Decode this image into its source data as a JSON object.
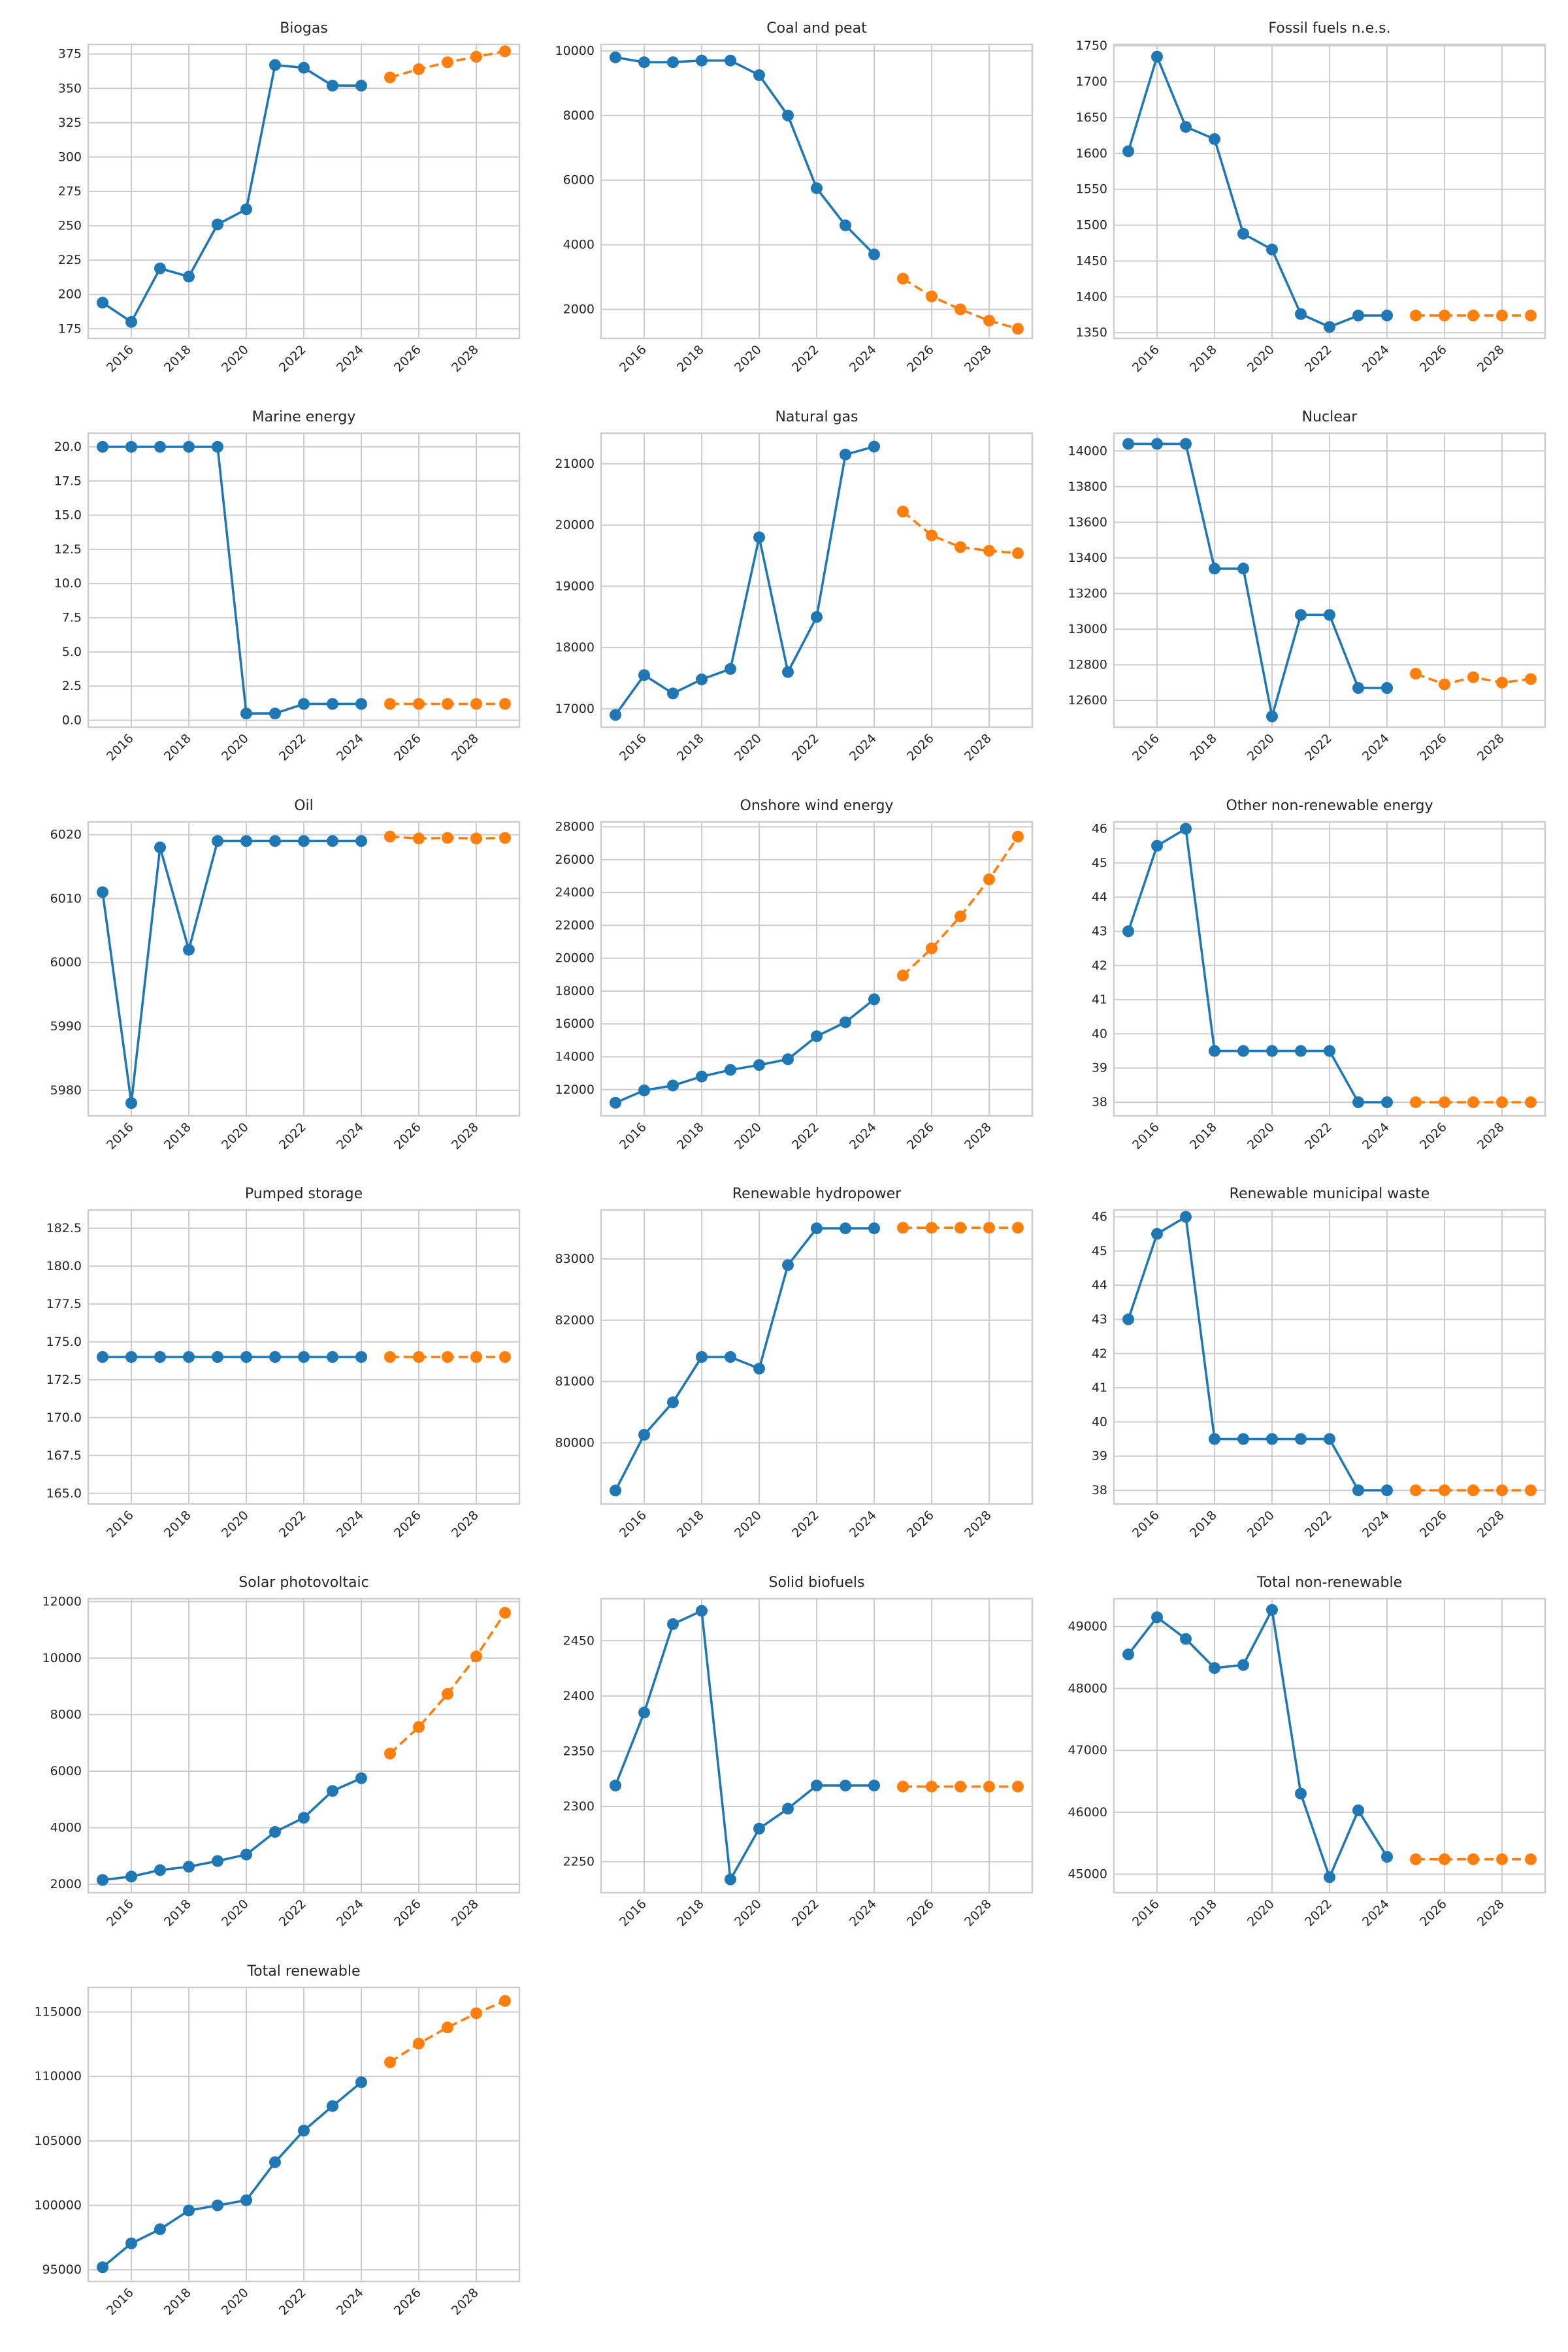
{
  "colors": {
    "historical": "#1f77b4",
    "forecast": "#ff7f0e",
    "grid": "#cccccc"
  },
  "figure": {
    "rows": 6,
    "cols": 3,
    "grid": true,
    "historical_style": "solid line with circle markers",
    "forecast_style": "dashed line with circle markers"
  },
  "chart_data": [
    {
      "type": "line",
      "title": "Biogas",
      "xlabel": "",
      "ylabel": "",
      "xlim": [
        2014.5,
        2029.5
      ],
      "ylim": [
        168,
        382
      ],
      "xticks": [
        "2016",
        "2018",
        "2020",
        "2022",
        "2024",
        "2026",
        "2028"
      ],
      "yticks": [
        "175",
        "200",
        "225",
        "250",
        "275",
        "300",
        "325",
        "350",
        "375"
      ],
      "series": [
        {
          "x": [
            2015,
            2016,
            2017,
            2018,
            2019,
            2020,
            2021,
            2022,
            2023,
            2024
          ],
          "values": [
            194,
            180,
            219,
            213,
            251,
            262,
            367,
            365,
            352,
            352
          ]
        },
        {
          "x": [
            2025,
            2026,
            2027,
            2028,
            2029
          ],
          "values": [
            358,
            364,
            369,
            373,
            377
          ]
        }
      ]
    },
    {
      "type": "line",
      "title": "Coal and peat",
      "xlabel": "",
      "ylabel": "",
      "xlim": [
        2014.5,
        2029.5
      ],
      "ylim": [
        1100,
        10200
      ],
      "xticks": [
        "2016",
        "2018",
        "2020",
        "2022",
        "2024",
        "2026",
        "2028"
      ],
      "yticks": [
        "2000",
        "4000",
        "6000",
        "8000",
        "10000"
      ],
      "series": [
        {
          "x": [
            2015,
            2016,
            2017,
            2018,
            2019,
            2020,
            2021,
            2022,
            2023,
            2024
          ],
          "values": [
            9800,
            9650,
            9650,
            9700,
            9700,
            9250,
            8000,
            5750,
            4600,
            3700
          ]
        },
        {
          "x": [
            2025,
            2026,
            2027,
            2028,
            2029
          ],
          "values": [
            2950,
            2400,
            2000,
            1650,
            1400
          ]
        }
      ]
    },
    {
      "type": "line",
      "title": "Fossil fuels n.e.s.",
      "xlabel": "",
      "ylabel": "",
      "xlim": [
        2014.5,
        2029.5
      ],
      "ylim": [
        1342,
        1752
      ],
      "xticks": [
        "2016",
        "2018",
        "2020",
        "2022",
        "2024",
        "2026",
        "2028"
      ],
      "yticks": [
        "1350",
        "1400",
        "1450",
        "1500",
        "1550",
        "1600",
        "1650",
        "1700",
        "1750"
      ],
      "series": [
        {
          "x": [
            2015,
            2016,
            2017,
            2018,
            2019,
            2020,
            2021,
            2022,
            2023,
            2024
          ],
          "values": [
            1603,
            1735,
            1637,
            1620,
            1488,
            1466,
            1376,
            1358,
            1374,
            1374
          ]
        },
        {
          "x": [
            2025,
            2026,
            2027,
            2028,
            2029
          ],
          "values": [
            1374,
            1374,
            1374,
            1374,
            1374
          ]
        }
      ]
    },
    {
      "type": "line",
      "title": "Marine energy",
      "xlabel": "",
      "ylabel": "",
      "xlim": [
        2014.5,
        2029.5
      ],
      "ylim": [
        -0.5,
        21
      ],
      "xticks": [
        "2016",
        "2018",
        "2020",
        "2022",
        "2024",
        "2026",
        "2028"
      ],
      "yticks": [
        "0.0",
        "2.5",
        "5.0",
        "7.5",
        "10.0",
        "12.5",
        "15.0",
        "17.5",
        "20.0"
      ],
      "series": [
        {
          "x": [
            2015,
            2016,
            2017,
            2018,
            2019,
            2020,
            2021,
            2022,
            2023,
            2024
          ],
          "values": [
            20,
            20,
            20,
            20,
            20,
            0.5,
            0.5,
            1.2,
            1.2,
            1.2
          ]
        },
        {
          "x": [
            2025,
            2026,
            2027,
            2028,
            2029
          ],
          "values": [
            1.2,
            1.2,
            1.2,
            1.2,
            1.2
          ]
        }
      ]
    },
    {
      "type": "line",
      "title": "Natural gas",
      "xlabel": "",
      "ylabel": "",
      "xlim": [
        2014.5,
        2029.5
      ],
      "ylim": [
        16700,
        21500
      ],
      "xticks": [
        "2016",
        "2018",
        "2020",
        "2022",
        "2024",
        "2026",
        "2028"
      ],
      "yticks": [
        "17000",
        "18000",
        "19000",
        "20000",
        "21000"
      ],
      "series": [
        {
          "x": [
            2015,
            2016,
            2017,
            2018,
            2019,
            2020,
            2021,
            2022,
            2023,
            2024
          ],
          "values": [
            16900,
            17550,
            17250,
            17480,
            17650,
            19800,
            17600,
            18500,
            21150,
            21280
          ]
        },
        {
          "x": [
            2025,
            2026,
            2027,
            2028,
            2029
          ],
          "values": [
            20220,
            19830,
            19640,
            19580,
            19540
          ]
        }
      ]
    },
    {
      "type": "line",
      "title": "Nuclear",
      "xlabel": "",
      "ylabel": "",
      "xlim": [
        2014.5,
        2029.5
      ],
      "ylim": [
        12450,
        14100
      ],
      "xticks": [
        "2016",
        "2018",
        "2020",
        "2022",
        "2024",
        "2026",
        "2028"
      ],
      "yticks": [
        "12600",
        "12800",
        "13000",
        "13200",
        "13400",
        "13600",
        "13800",
        "14000"
      ],
      "series": [
        {
          "x": [
            2015,
            2016,
            2017,
            2018,
            2019,
            2020,
            2021,
            2022,
            2023,
            2024
          ],
          "values": [
            14040,
            14040,
            14040,
            13340,
            13340,
            12510,
            13080,
            13080,
            12670,
            12670
          ]
        },
        {
          "x": [
            2025,
            2026,
            2027,
            2028,
            2029
          ],
          "values": [
            12750,
            12690,
            12730,
            12700,
            12720
          ]
        }
      ]
    },
    {
      "type": "line",
      "title": "Oil",
      "xlabel": "",
      "ylabel": "",
      "xlim": [
        2014.5,
        2029.5
      ],
      "ylim": [
        5976,
        6022
      ],
      "xticks": [
        "2016",
        "2018",
        "2020",
        "2022",
        "2024",
        "2026",
        "2028"
      ],
      "yticks": [
        "5980",
        "5990",
        "6000",
        "6010",
        "6020"
      ],
      "series": [
        {
          "x": [
            2015,
            2016,
            2017,
            2018,
            2019,
            2020,
            2021,
            2022,
            2023,
            2024
          ],
          "values": [
            6011,
            5978,
            6018,
            6002,
            6019,
            6019,
            6019,
            6019,
            6019,
            6019
          ]
        },
        {
          "x": [
            2025,
            2026,
            2027,
            2028,
            2029
          ],
          "values": [
            6019.7,
            6019.4,
            6019.5,
            6019.4,
            6019.5
          ]
        }
      ]
    },
    {
      "type": "line",
      "title": "Onshore wind energy",
      "xlabel": "",
      "ylabel": "",
      "xlim": [
        2014.5,
        2029.5
      ],
      "ylim": [
        10400,
        28300
      ],
      "xticks": [
        "2016",
        "2018",
        "2020",
        "2022",
        "2024",
        "2026",
        "2028"
      ],
      "yticks": [
        "12000",
        "14000",
        "16000",
        "18000",
        "20000",
        "22000",
        "24000",
        "26000",
        "28000"
      ],
      "series": [
        {
          "x": [
            2015,
            2016,
            2017,
            2018,
            2019,
            2020,
            2021,
            2022,
            2023,
            2024
          ],
          "values": [
            11200,
            11950,
            12250,
            12800,
            13200,
            13500,
            13850,
            15250,
            16100,
            17500
          ]
        },
        {
          "x": [
            2025,
            2026,
            2027,
            2028,
            2029
          ],
          "values": [
            18950,
            20600,
            22550,
            24800,
            27400
          ]
        }
      ]
    },
    {
      "type": "line",
      "title": "Other non-renewable energy",
      "xlabel": "",
      "ylabel": "",
      "xlim": [
        2014.5,
        2029.5
      ],
      "ylim": [
        37.6,
        46.2
      ],
      "xticks": [
        "2016",
        "2018",
        "2020",
        "2022",
        "2024",
        "2026",
        "2028"
      ],
      "yticks": [
        "38",
        "39",
        "40",
        "41",
        "42",
        "43",
        "44",
        "45",
        "46"
      ],
      "series": [
        {
          "x": [
            2015,
            2016,
            2017,
            2018,
            2019,
            2020,
            2021,
            2022,
            2023,
            2024
          ],
          "values": [
            43,
            45.5,
            46,
            39.5,
            39.5,
            39.5,
            39.5,
            39.5,
            38,
            38
          ]
        },
        {
          "x": [
            2025,
            2026,
            2027,
            2028,
            2029
          ],
          "values": [
            38,
            38,
            38,
            38,
            38
          ]
        }
      ]
    },
    {
      "type": "line",
      "title": "Pumped storage",
      "xlabel": "",
      "ylabel": "",
      "xlim": [
        2014.5,
        2029.5
      ],
      "ylim": [
        164.3,
        183.7
      ],
      "xticks": [
        "2016",
        "2018",
        "2020",
        "2022",
        "2024",
        "2026",
        "2028"
      ],
      "yticks": [
        "165.0",
        "167.5",
        "170.0",
        "172.5",
        "175.0",
        "177.5",
        "180.0",
        "182.5"
      ],
      "series": [
        {
          "x": [
            2015,
            2016,
            2017,
            2018,
            2019,
            2020,
            2021,
            2022,
            2023,
            2024
          ],
          "values": [
            174,
            174,
            174,
            174,
            174,
            174,
            174,
            174,
            174,
            174
          ]
        },
        {
          "x": [
            2025,
            2026,
            2027,
            2028,
            2029
          ],
          "values": [
            174,
            174,
            174,
            174,
            174
          ]
        }
      ]
    },
    {
      "type": "line",
      "title": "Renewable hydropower",
      "xlabel": "",
      "ylabel": "",
      "xlim": [
        2014.5,
        2029.5
      ],
      "ylim": [
        79000,
        83800
      ],
      "xticks": [
        "2016",
        "2018",
        "2020",
        "2022",
        "2024",
        "2026",
        "2028"
      ],
      "yticks": [
        "80000",
        "81000",
        "82000",
        "83000"
      ],
      "series": [
        {
          "x": [
            2015,
            2016,
            2017,
            2018,
            2019,
            2020,
            2021,
            2022,
            2023,
            2024
          ],
          "values": [
            79220,
            80130,
            80660,
            81400,
            81400,
            81210,
            82900,
            83500,
            83500,
            83500
          ]
        },
        {
          "x": [
            2025,
            2026,
            2027,
            2028,
            2029
          ],
          "values": [
            83510,
            83510,
            83510,
            83510,
            83510
          ]
        }
      ]
    },
    {
      "type": "line",
      "title": "Renewable municipal waste",
      "xlabel": "",
      "ylabel": "",
      "xlim": [
        2014.5,
        2029.5
      ],
      "ylim": [
        37.6,
        46.2
      ],
      "xticks": [
        "2016",
        "2018",
        "2020",
        "2022",
        "2024",
        "2026",
        "2028"
      ],
      "yticks": [
        "38",
        "39",
        "40",
        "41",
        "42",
        "43",
        "44",
        "45",
        "46"
      ],
      "series": [
        {
          "x": [
            2015,
            2016,
            2017,
            2018,
            2019,
            2020,
            2021,
            2022,
            2023,
            2024
          ],
          "values": [
            43,
            45.5,
            46,
            39.5,
            39.5,
            39.5,
            39.5,
            39.5,
            38,
            38
          ]
        },
        {
          "x": [
            2025,
            2026,
            2027,
            2028,
            2029
          ],
          "values": [
            38,
            38,
            38,
            38,
            38
          ]
        }
      ]
    },
    {
      "type": "line",
      "title": "Solar photovoltaic",
      "xlabel": "",
      "ylabel": "",
      "xlim": [
        2014.5,
        2029.5
      ],
      "ylim": [
        1700,
        12100
      ],
      "xticks": [
        "2016",
        "2018",
        "2020",
        "2022",
        "2024",
        "2026",
        "2028"
      ],
      "yticks": [
        "2000",
        "4000",
        "6000",
        "8000",
        "10000",
        "12000"
      ],
      "series": [
        {
          "x": [
            2015,
            2016,
            2017,
            2018,
            2019,
            2020,
            2021,
            2022,
            2023,
            2024
          ],
          "values": [
            2150,
            2270,
            2500,
            2620,
            2820,
            3050,
            3850,
            4350,
            5300,
            5750
          ]
        },
        {
          "x": [
            2025,
            2026,
            2027,
            2028,
            2029
          ],
          "values": [
            6620,
            7560,
            8730,
            10060,
            11600
          ]
        }
      ]
    },
    {
      "type": "line",
      "title": "Solid biofuels",
      "xlabel": "",
      "ylabel": "",
      "xlim": [
        2014.5,
        2029.5
      ],
      "ylim": [
        2222,
        2488
      ],
      "xticks": [
        "2016",
        "2018",
        "2020",
        "2022",
        "2024",
        "2026",
        "2028"
      ],
      "yticks": [
        "2250",
        "2300",
        "2350",
        "2400",
        "2450"
      ],
      "series": [
        {
          "x": [
            2015,
            2016,
            2017,
            2018,
            2019,
            2020,
            2021,
            2022,
            2023,
            2024
          ],
          "values": [
            2319,
            2385,
            2465,
            2477,
            2234,
            2280,
            2298,
            2319,
            2319,
            2319
          ]
        },
        {
          "x": [
            2025,
            2026,
            2027,
            2028,
            2029
          ],
          "values": [
            2318,
            2318,
            2318,
            2318,
            2318
          ]
        }
      ]
    },
    {
      "type": "line",
      "title": "Total non-renewable",
      "xlabel": "",
      "ylabel": "",
      "xlim": [
        2014.5,
        2029.5
      ],
      "ylim": [
        44700,
        49450
      ],
      "xticks": [
        "2016",
        "2018",
        "2020",
        "2022",
        "2024",
        "2026",
        "2028"
      ],
      "yticks": [
        "45000",
        "46000",
        "47000",
        "48000",
        "49000"
      ],
      "series": [
        {
          "x": [
            2015,
            2016,
            2017,
            2018,
            2019,
            2020,
            2021,
            2022,
            2023,
            2024
          ],
          "values": [
            48550,
            49150,
            48800,
            48330,
            48380,
            49270,
            46300,
            44950,
            46030,
            45280
          ]
        },
        {
          "x": [
            2025,
            2026,
            2027,
            2028,
            2029
          ],
          "values": [
            45240,
            45240,
            45240,
            45240,
            45240
          ]
        }
      ]
    },
    {
      "type": "line",
      "title": "Total renewable",
      "xlabel": "",
      "ylabel": "",
      "xlim": [
        2014.5,
        2029.5
      ],
      "ylim": [
        94100,
        116900
      ],
      "xticks": [
        "2016",
        "2018",
        "2020",
        "2022",
        "2024",
        "2026",
        "2028"
      ],
      "yticks": [
        "95000",
        "100000",
        "105000",
        "110000",
        "115000"
      ],
      "series": [
        {
          "x": [
            2015,
            2016,
            2017,
            2018,
            2019,
            2020,
            2021,
            2022,
            2023,
            2024
          ],
          "values": [
            95200,
            97050,
            98150,
            99600,
            100000,
            100400,
            103350,
            105800,
            107700,
            109550
          ]
        },
        {
          "x": [
            2025,
            2026,
            2027,
            2028,
            2029
          ],
          "values": [
            111100,
            112550,
            113800,
            114900,
            115850
          ]
        }
      ]
    }
  ]
}
